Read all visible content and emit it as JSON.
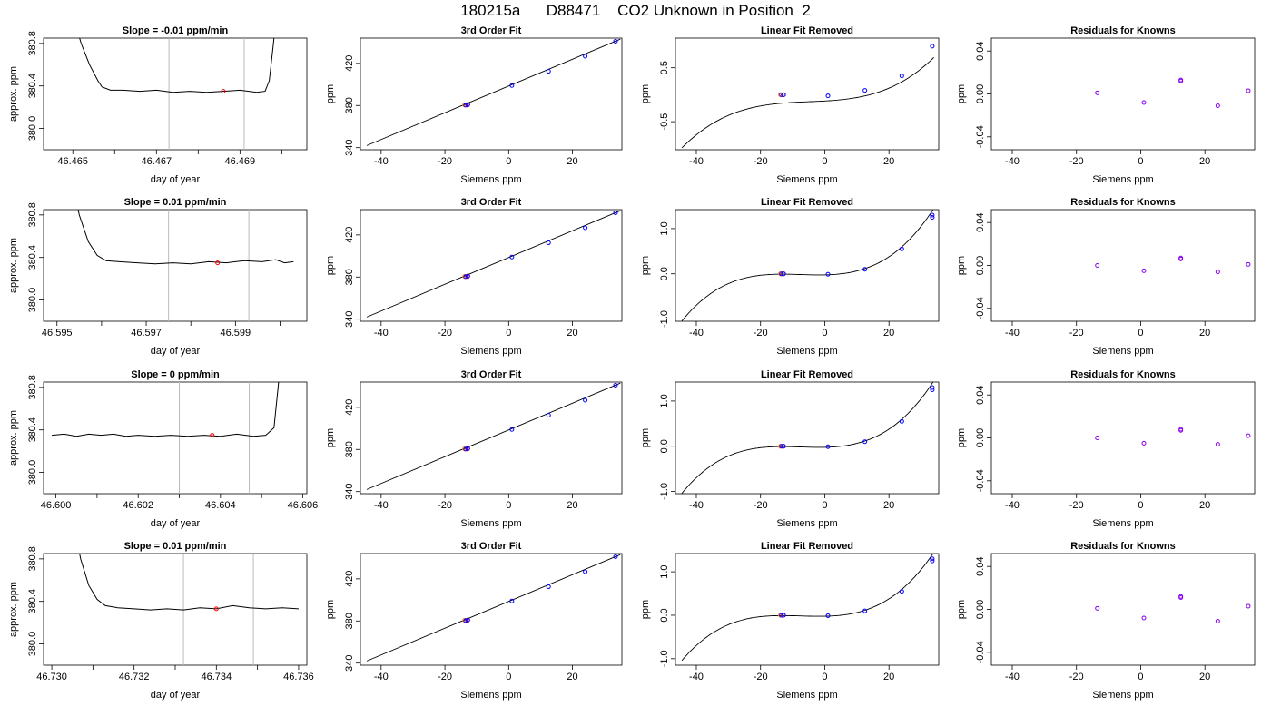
{
  "figure": {
    "title": "180215a      D88471    CO2 Unknown in Position  2"
  },
  "colors": {
    "known": "#0000ff",
    "unknown": "#ff0000",
    "unknown_fill": "#ff8800",
    "residual": "#8800ee",
    "window_line": "#bbbbbb"
  },
  "chart_data": [
    {
      "type": "line",
      "row": 0,
      "col": 0,
      "title": "Slope =  -0.01  ppm/min",
      "xlabel": "day of year",
      "ylabel": "approx. ppm",
      "xlim": [
        46.4643,
        46.4706
      ],
      "ylim": [
        379.8,
        380.85
      ],
      "xticks": [
        46.465,
        46.466,
        46.467,
        46.468,
        46.469,
        46.47
      ],
      "xtick_labels": [
        "46.465",
        "",
        "46.467",
        "",
        "46.469",
        ""
      ],
      "yticks": [
        380.0,
        380.4,
        380.8
      ],
      "ytick_labels": [
        "380.0",
        "380.4",
        "380.8"
      ],
      "window": [
        46.4673,
        46.4691
      ],
      "unknown_point": [
        46.4686,
        380.35
      ],
      "trace": [
        [
          46.4649,
          381.2
        ],
        [
          46.4652,
          380.8
        ],
        [
          46.4654,
          380.6
        ],
        [
          46.4656,
          380.45
        ],
        [
          46.4657,
          380.39
        ],
        [
          46.4659,
          380.36
        ],
        [
          46.4662,
          380.36
        ],
        [
          46.4666,
          380.35
        ],
        [
          46.467,
          380.36
        ],
        [
          46.4674,
          380.34
        ],
        [
          46.4678,
          380.35
        ],
        [
          46.4682,
          380.34
        ],
        [
          46.4686,
          380.35
        ],
        [
          46.469,
          380.36
        ],
        [
          46.4694,
          380.34
        ],
        [
          46.4696,
          380.35
        ],
        [
          46.4697,
          380.45
        ],
        [
          46.4698,
          380.8
        ],
        [
          46.4699,
          381.2
        ]
      ]
    },
    {
      "type": "scatter",
      "row": 0,
      "col": 1,
      "title": "3rd Order Fit",
      "xlabel": "Siemens ppm",
      "ylabel": "ppm",
      "xlim": [
        -46.5,
        35.5
      ],
      "ylim": [
        338,
        444
      ],
      "xticks": [
        -40,
        -20,
        0,
        20
      ],
      "yticks": [
        340,
        380,
        420
      ],
      "knowns": [
        [
          -13.5,
          380.3
        ],
        [
          -12.8,
          381.0
        ],
        [
          1.0,
          399.0
        ],
        [
          12.5,
          412.5
        ],
        [
          24.0,
          426.8
        ],
        [
          33.5,
          441.0
        ]
      ],
      "unknowns": [
        [
          -13.2,
          380.6
        ]
      ],
      "fit_line": [
        [
          -44.5,
          342.0
        ],
        [
          35.0,
          443.0
        ]
      ]
    },
    {
      "type": "scatter",
      "row": 0,
      "col": 2,
      "title": "Linear Fit Removed",
      "xlabel": "Siemens ppm",
      "ylabel": "ppm",
      "xlim": [
        -46.5,
        35.5
      ],
      "ylim": [
        -1.02,
        1.05
      ],
      "xticks": [
        -40,
        -20,
        0,
        20
      ],
      "yticks": [
        -0.5,
        0.5
      ],
      "knowns": [
        [
          -13.5,
          0.0
        ],
        [
          -12.8,
          0.0
        ],
        [
          1.0,
          -0.02
        ],
        [
          12.5,
          0.08
        ],
        [
          24.0,
          0.35
        ],
        [
          33.5,
          0.9
        ]
      ],
      "unknowns": [
        [
          -13.2,
          0.0
        ]
      ],
      "curve_coef": [
        -0.1163,
        0.00333,
        0.000183,
        1.23e-05
      ]
    },
    {
      "type": "scatter",
      "row": 0,
      "col": 3,
      "title": "Residuals for Knowns",
      "xlabel": "Siemens ppm",
      "ylabel": "ppm",
      "xlim": [
        -46.5,
        35.5
      ],
      "ylim": [
        -0.052,
        0.052
      ],
      "xticks": [
        -40,
        -20,
        0,
        20
      ],
      "yticks": [
        -0.04,
        0.0,
        0.04
      ],
      "ytick_labels": [
        "-0.04",
        "0.00",
        "0.04"
      ],
      "residuals": [
        [
          -13.5,
          0.001
        ],
        [
          1.0,
          -0.008
        ],
        [
          12.5,
          0.012
        ],
        [
          12.5,
          0.013
        ],
        [
          24.0,
          -0.011
        ],
        [
          33.5,
          0.003
        ]
      ]
    },
    {
      "type": "line",
      "row": 1,
      "col": 0,
      "title": "Slope =  0.01  ppm/min",
      "xlabel": "day of year",
      "ylabel": "approx. ppm",
      "xlim": [
        46.5947,
        46.6006
      ],
      "ylim": [
        379.8,
        380.85
      ],
      "xticks": [
        46.595,
        46.596,
        46.597,
        46.598,
        46.599,
        46.6
      ],
      "xtick_labels": [
        "46.595",
        "",
        "46.597",
        "",
        "46.599",
        ""
      ],
      "yticks": [
        380.0,
        380.4,
        380.8
      ],
      "ytick_labels": [
        "380.0",
        "380.4",
        "380.8"
      ],
      "window": [
        46.5975,
        46.5993
      ],
      "unknown_point": [
        46.5986,
        380.35
      ],
      "trace": [
        [
          46.5953,
          381.2
        ],
        [
          46.5955,
          380.8
        ],
        [
          46.5957,
          380.55
        ],
        [
          46.5959,
          380.42
        ],
        [
          46.5961,
          380.37
        ],
        [
          46.5964,
          380.36
        ],
        [
          46.5968,
          380.35
        ],
        [
          46.5972,
          380.34
        ],
        [
          46.5976,
          380.35
        ],
        [
          46.598,
          380.34
        ],
        [
          46.5984,
          380.36
        ],
        [
          46.5988,
          380.35
        ],
        [
          46.5992,
          380.37
        ],
        [
          46.5996,
          380.36
        ],
        [
          46.5999,
          380.38
        ],
        [
          46.6001,
          380.35
        ],
        [
          46.6003,
          380.36
        ]
      ]
    },
    {
      "type": "scatter",
      "row": 1,
      "col": 1,
      "title": "3rd Order Fit",
      "xlabel": "Siemens ppm",
      "ylabel": "ppm",
      "xlim": [
        -46.5,
        35.5
      ],
      "ylim": [
        338,
        444
      ],
      "xticks": [
        -40,
        -20,
        0,
        20
      ],
      "yticks": [
        340,
        380,
        420
      ],
      "knowns": [
        [
          -13.5,
          380.3
        ],
        [
          -12.8,
          381.0
        ],
        [
          1.0,
          399.0
        ],
        [
          12.5,
          412.5
        ],
        [
          24.0,
          426.8
        ],
        [
          33.5,
          441.0
        ]
      ],
      "unknowns": [
        [
          -13.2,
          380.6
        ]
      ],
      "fit_line": [
        [
          -44.5,
          342.0
        ],
        [
          35.0,
          443.0
        ]
      ]
    },
    {
      "type": "scatter",
      "row": 1,
      "col": 2,
      "title": "Linear Fit Removed",
      "xlabel": "Siemens ppm",
      "ylabel": "ppm",
      "xlim": [
        -46.5,
        35.5
      ],
      "ylim": [
        -1.05,
        1.42
      ],
      "xticks": [
        -40,
        -20,
        0,
        20
      ],
      "yticks": [
        -1.0,
        0.0,
        1.0
      ],
      "ytick_labels": [
        "-1.0",
        "0.0",
        "1.0"
      ],
      "knowns": [
        [
          -13.5,
          0.0
        ],
        [
          -12.8,
          0.0
        ],
        [
          1.0,
          -0.01
        ],
        [
          12.5,
          0.1
        ],
        [
          24.0,
          0.55
        ],
        [
          33.5,
          1.25
        ],
        [
          33.5,
          1.3
        ]
      ],
      "unknowns": [
        [
          -13.2,
          0.0
        ]
      ],
      "curve_coef": [
        -0.0232,
        0.00151,
        0.000489,
        2.18e-05
      ]
    },
    {
      "type": "scatter",
      "row": 1,
      "col": 3,
      "title": "Residuals for Knowns",
      "xlabel": "Siemens ppm",
      "ylabel": "ppm",
      "xlim": [
        -46.5,
        35.5
      ],
      "ylim": [
        -0.052,
        0.052
      ],
      "xticks": [
        -40,
        -20,
        0,
        20
      ],
      "yticks": [
        -0.04,
        0.0,
        0.04
      ],
      "ytick_labels": [
        "-0.04",
        "0.00",
        "0.04"
      ],
      "residuals": [
        [
          -13.5,
          0.0
        ],
        [
          1.0,
          -0.005
        ],
        [
          12.5,
          0.006
        ],
        [
          12.5,
          0.007
        ],
        [
          24.0,
          -0.006
        ],
        [
          33.5,
          0.001
        ]
      ]
    },
    {
      "type": "line",
      "row": 2,
      "col": 0,
      "title": "Slope =  0  ppm/min",
      "xlabel": "day of year",
      "ylabel": "approx. ppm",
      "xlim": [
        46.5997,
        46.6061
      ],
      "ylim": [
        379.8,
        380.85
      ],
      "xticks": [
        46.6,
        46.601,
        46.602,
        46.603,
        46.604,
        46.605,
        46.606
      ],
      "xtick_labels": [
        "46.600",
        "",
        "46.602",
        "",
        "46.604",
        "",
        "46.606"
      ],
      "yticks": [
        380.0,
        380.4,
        380.8
      ],
      "ytick_labels": [
        "380.0",
        "380.4",
        "380.8"
      ],
      "window": [
        46.603,
        46.6047
      ],
      "unknown_point": [
        46.6038,
        380.35
      ],
      "trace": [
        [
          46.5999,
          380.35
        ],
        [
          46.6002,
          380.36
        ],
        [
          46.6005,
          380.34
        ],
        [
          46.6008,
          380.36
        ],
        [
          46.6011,
          380.35
        ],
        [
          46.6014,
          380.36
        ],
        [
          46.6017,
          380.34
        ],
        [
          46.602,
          380.35
        ],
        [
          46.6024,
          380.34
        ],
        [
          46.6028,
          380.35
        ],
        [
          46.6032,
          380.34
        ],
        [
          46.6036,
          380.35
        ],
        [
          46.604,
          380.34
        ],
        [
          46.6044,
          380.36
        ],
        [
          46.6048,
          380.34
        ],
        [
          46.6051,
          380.35
        ],
        [
          46.6053,
          380.42
        ],
        [
          46.6054,
          380.8
        ],
        [
          46.6055,
          381.2
        ]
      ]
    },
    {
      "type": "scatter",
      "row": 2,
      "col": 1,
      "title": "3rd Order Fit",
      "xlabel": "Siemens ppm",
      "ylabel": "ppm",
      "xlim": [
        -46.5,
        35.5
      ],
      "ylim": [
        338,
        444
      ],
      "xticks": [
        -40,
        -20,
        0,
        20
      ],
      "yticks": [
        340,
        380,
        420
      ],
      "knowns": [
        [
          -13.5,
          380.3
        ],
        [
          -12.8,
          381.0
        ],
        [
          1.0,
          399.0
        ],
        [
          12.5,
          412.5
        ],
        [
          24.0,
          426.8
        ],
        [
          33.5,
          441.0
        ]
      ],
      "unknowns": [
        [
          -13.2,
          380.6
        ]
      ],
      "fit_line": [
        [
          -44.5,
          342.0
        ],
        [
          35.0,
          443.0
        ]
      ]
    },
    {
      "type": "scatter",
      "row": 2,
      "col": 2,
      "title": "Linear Fit Removed",
      "xlabel": "Siemens ppm",
      "ylabel": "ppm",
      "xlim": [
        -46.5,
        35.5
      ],
      "ylim": [
        -1.05,
        1.42
      ],
      "xticks": [
        -40,
        -20,
        0,
        20
      ],
      "yticks": [
        -1.0,
        0.0,
        1.0
      ],
      "ytick_labels": [
        "-1.0",
        "0.0",
        "1.0"
      ],
      "knowns": [
        [
          -13.5,
          0.0
        ],
        [
          -12.8,
          0.0
        ],
        [
          1.0,
          -0.01
        ],
        [
          12.5,
          0.1
        ],
        [
          24.0,
          0.55
        ],
        [
          33.5,
          1.25
        ],
        [
          33.5,
          1.3
        ]
      ],
      "unknowns": [
        [
          -13.2,
          0.0
        ]
      ],
      "curve_coef": [
        -0.0232,
        0.00151,
        0.000489,
        2.18e-05
      ]
    },
    {
      "type": "scatter",
      "row": 2,
      "col": 3,
      "title": "Residuals for Knowns",
      "xlabel": "Siemens ppm",
      "ylabel": "ppm",
      "xlim": [
        -46.5,
        35.5
      ],
      "ylim": [
        -0.052,
        0.052
      ],
      "xticks": [
        -40,
        -20,
        0,
        20
      ],
      "yticks": [
        -0.04,
        0.0,
        0.04
      ],
      "ytick_labels": [
        "-0.04",
        "0.00",
        "0.04"
      ],
      "residuals": [
        [
          -13.5,
          0.0
        ],
        [
          1.0,
          -0.005
        ],
        [
          12.5,
          0.007
        ],
        [
          12.5,
          0.008
        ],
        [
          24.0,
          -0.006
        ],
        [
          33.5,
          0.002
        ]
      ]
    },
    {
      "type": "line",
      "row": 3,
      "col": 0,
      "title": "Slope =  0.01  ppm/min",
      "xlabel": "day of year",
      "ylabel": "approx. ppm",
      "xlim": [
        46.7298,
        46.7362
      ],
      "ylim": [
        379.8,
        380.85
      ],
      "xticks": [
        46.73,
        46.731,
        46.732,
        46.733,
        46.734,
        46.735,
        46.736
      ],
      "xtick_labels": [
        "46.730",
        "",
        "46.732",
        "",
        "46.734",
        "",
        "46.736"
      ],
      "yticks": [
        380.0,
        380.4,
        380.8
      ],
      "ytick_labels": [
        "380.0",
        "380.4",
        "380.8"
      ],
      "window": [
        46.7332,
        46.7349
      ],
      "unknown_point": [
        46.734,
        380.33
      ],
      "trace": [
        [
          46.7305,
          381.2
        ],
        [
          46.7307,
          380.8
        ],
        [
          46.7309,
          380.55
        ],
        [
          46.7311,
          380.42
        ],
        [
          46.7313,
          380.36
        ],
        [
          46.7316,
          380.34
        ],
        [
          46.732,
          380.33
        ],
        [
          46.7324,
          380.32
        ],
        [
          46.7328,
          380.33
        ],
        [
          46.7332,
          380.32
        ],
        [
          46.7336,
          380.34
        ],
        [
          46.734,
          380.33
        ],
        [
          46.7344,
          380.36
        ],
        [
          46.7348,
          380.34
        ],
        [
          46.7352,
          380.33
        ],
        [
          46.7356,
          380.34
        ],
        [
          46.736,
          380.33
        ]
      ]
    },
    {
      "type": "scatter",
      "row": 3,
      "col": 1,
      "title": "3rd Order Fit",
      "xlabel": "Siemens ppm",
      "ylabel": "ppm",
      "xlim": [
        -46.5,
        35.5
      ],
      "ylim": [
        338,
        444
      ],
      "xticks": [
        -40,
        -20,
        0,
        20
      ],
      "yticks": [
        340,
        380,
        420
      ],
      "knowns": [
        [
          -13.5,
          380.3
        ],
        [
          -12.8,
          381.0
        ],
        [
          1.0,
          399.0
        ],
        [
          12.5,
          412.5
        ],
        [
          24.0,
          426.8
        ],
        [
          33.5,
          441.0
        ]
      ],
      "unknowns": [
        [
          -13.2,
          380.6
        ]
      ],
      "fit_line": [
        [
          -44.5,
          342.0
        ],
        [
          35.0,
          443.0
        ]
      ]
    },
    {
      "type": "scatter",
      "row": 3,
      "col": 2,
      "title": "Linear Fit Removed",
      "xlabel": "Siemens ppm",
      "ylabel": "ppm",
      "xlim": [
        -46.5,
        35.5
      ],
      "ylim": [
        -1.15,
        1.42
      ],
      "xticks": [
        -40,
        -20,
        0,
        20
      ],
      "yticks": [
        -1.0,
        0.0,
        1.0
      ],
      "ytick_labels": [
        "-1.0",
        "0.0",
        "1.0"
      ],
      "knowns": [
        [
          -13.5,
          0.0
        ],
        [
          -12.8,
          0.0
        ],
        [
          1.0,
          -0.01
        ],
        [
          12.5,
          0.1
        ],
        [
          24.0,
          0.55
        ],
        [
          33.5,
          1.25
        ],
        [
          33.5,
          1.3
        ]
      ],
      "unknowns": [
        [
          -13.2,
          0.0
        ]
      ],
      "curve_coef": [
        -0.0232,
        0.00151,
        0.000489,
        2.18e-05
      ]
    },
    {
      "type": "scatter",
      "row": 3,
      "col": 3,
      "title": "Residuals for Knowns",
      "xlabel": "Siemens ppm",
      "ylabel": "ppm",
      "xlim": [
        -46.5,
        35.5
      ],
      "ylim": [
        -0.052,
        0.052
      ],
      "xticks": [
        -40,
        -20,
        0,
        20
      ],
      "yticks": [
        -0.04,
        0.0,
        0.04
      ],
      "ytick_labels": [
        "-0.04",
        "0.00",
        "0.04"
      ],
      "residuals": [
        [
          -13.5,
          0.001
        ],
        [
          1.0,
          -0.008
        ],
        [
          12.5,
          0.011
        ],
        [
          12.5,
          0.012
        ],
        [
          24.0,
          -0.011
        ],
        [
          33.5,
          0.003
        ]
      ]
    }
  ]
}
